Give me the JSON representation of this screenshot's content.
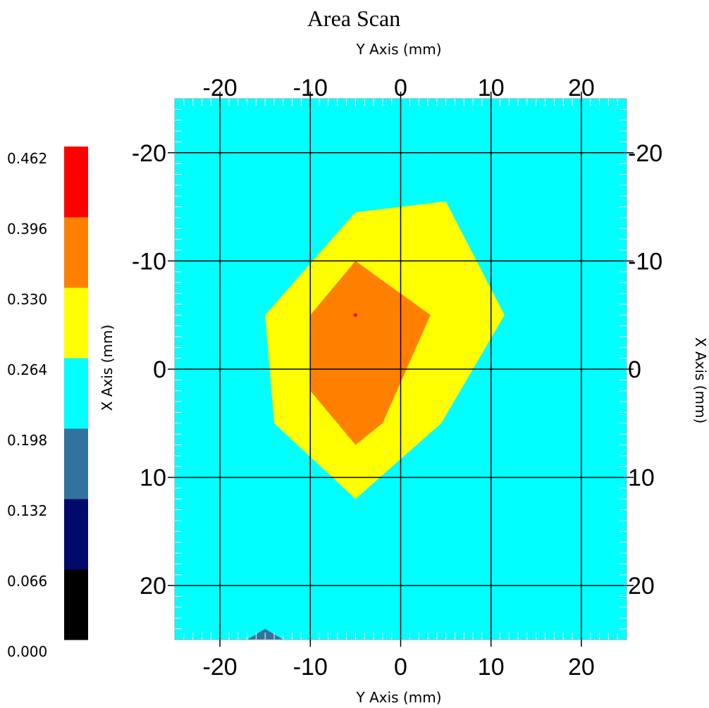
{
  "chart_data": {
    "type": "heatmap",
    "title": "Area Scan",
    "xlabel_top": "Y Axis (mm)",
    "xlabel_bottom": "Y Axis (mm)",
    "ylabel_left": "X Axis (mm)",
    "ylabel_right": "X Axis (mm)",
    "x_range": [
      -25,
      25
    ],
    "y_range": [
      -25,
      25
    ],
    "x_ticks": [
      -20,
      -10,
      0,
      10,
      20
    ],
    "y_ticks": [
      -20,
      -10,
      0,
      10,
      20
    ],
    "x_tick_labels": [
      "-20",
      "-10",
      "0",
      "10",
      "20"
    ],
    "y_tick_labels": [
      "-20",
      "-10",
      "0",
      "10",
      "20"
    ],
    "y_axis_inverted": true,
    "grid": true,
    "colorscale": {
      "labels": [
        "0.000",
        "0.066",
        "0.132",
        "0.198",
        "0.264",
        "0.330",
        "0.396",
        "0.462"
      ],
      "colors": [
        "#000000",
        "#000a6a",
        "#31739e",
        "#00ffff",
        "#ffff00",
        "#ff8000",
        "#ff0000"
      ]
    },
    "background_level_color": "#00ffff",
    "regions": [
      {
        "level": "0.330-0.396",
        "color": "#ffff00",
        "points": [
          [
            -5,
            -14.5
          ],
          [
            5,
            -15.5
          ],
          [
            11.5,
            -5
          ],
          [
            4.5,
            5
          ],
          [
            -5,
            12
          ],
          [
            -14,
            5
          ],
          [
            -15,
            -5
          ]
        ]
      },
      {
        "level": "0.396-0.462",
        "color": "#ff8000",
        "points": [
          [
            -5,
            -10
          ],
          [
            3.3,
            -5
          ],
          [
            -2,
            5
          ],
          [
            -5,
            7
          ],
          [
            -10,
            2
          ],
          [
            -10,
            -5
          ]
        ]
      },
      {
        "level": "0.198-0.264",
        "color": "#31739e",
        "points": [
          [
            -17,
            25
          ],
          [
            -15,
            24
          ],
          [
            -13,
            25
          ]
        ]
      }
    ],
    "peak": {
      "x": -5,
      "y": -5,
      "color": "#ff0000"
    }
  }
}
